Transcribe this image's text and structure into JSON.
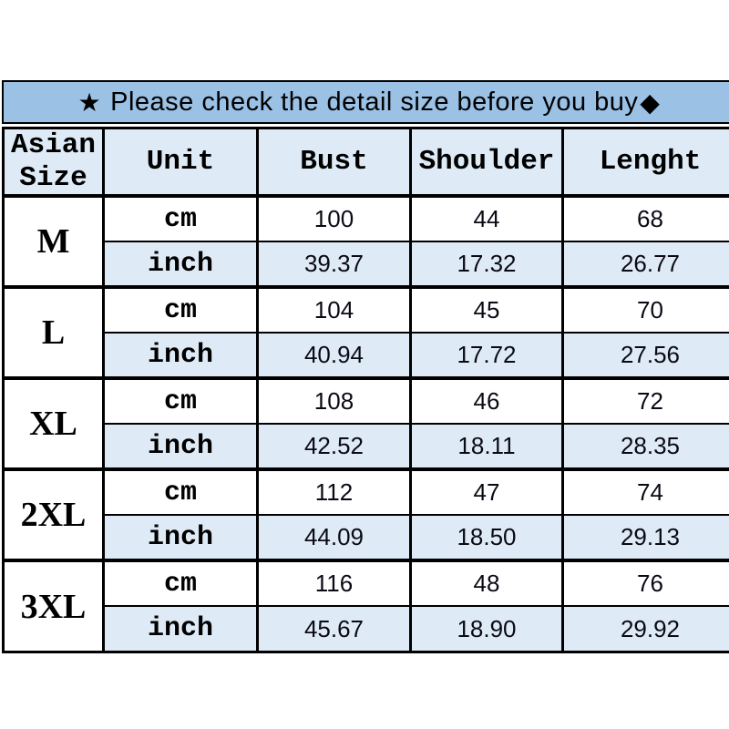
{
  "colors": {
    "banner_bg": "#9bc1e5",
    "alt_row_bg": "#deebf7",
    "border": "#000000",
    "text": "#000000"
  },
  "banner": {
    "star": "★",
    "text": "Please check the detail size before you buy",
    "diamond": "◆"
  },
  "table": {
    "headers": [
      "Asian Size",
      "Unit",
      "Bust",
      "Shoulder",
      "Lenght"
    ],
    "unit_labels": [
      "cm",
      "inch"
    ],
    "sizes": [
      {
        "label": "M",
        "cm": [
          "100",
          "44",
          "68"
        ],
        "inch": [
          "39.37",
          "17.32",
          "26.77"
        ]
      },
      {
        "label": "L",
        "cm": [
          "104",
          "45",
          "70"
        ],
        "inch": [
          "40.94",
          "17.72",
          "27.56"
        ]
      },
      {
        "label": "XL",
        "cm": [
          "108",
          "46",
          "72"
        ],
        "inch": [
          "42.52",
          "18.11",
          "28.35"
        ]
      },
      {
        "label": "2XL",
        "cm": [
          "112",
          "47",
          "74"
        ],
        "inch": [
          "44.09",
          "18.50",
          "29.13"
        ]
      },
      {
        "label": "3XL",
        "cm": [
          "116",
          "48",
          "76"
        ],
        "inch": [
          "45.67",
          "18.90",
          "29.92"
        ]
      }
    ]
  }
}
